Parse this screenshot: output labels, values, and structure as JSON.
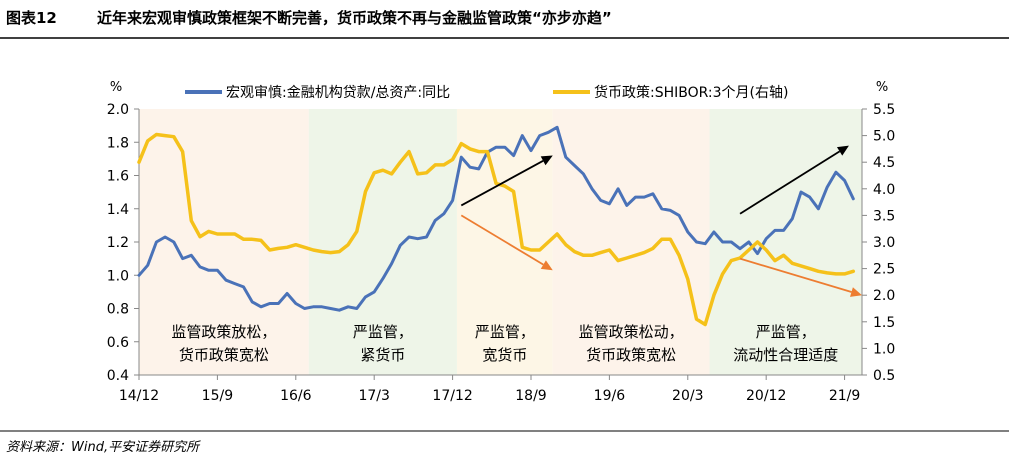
{
  "header": {
    "figure_no": "图表12",
    "title": "近年来宏观审慎政策框架不断完善，货币政策不再与金融监管政策“亦步亦趋”"
  },
  "source": "资料来源：Wind,平安证券研究所",
  "chart_data": {
    "type": "line",
    "left_axis": {
      "unit": "%",
      "range": [
        0.4,
        2.0
      ],
      "ticks": [
        "0.4",
        "0.6",
        "0.8",
        "1.0",
        "1.2",
        "1.4",
        "1.6",
        "1.8",
        "2.0"
      ],
      "tick_values": [
        0.4,
        0.6,
        0.8,
        1.0,
        1.2,
        1.4,
        1.6,
        1.8,
        2.0
      ]
    },
    "right_axis": {
      "unit": "%",
      "range": [
        0.5,
        5.5
      ],
      "ticks": [
        "0.5",
        "1.0",
        "1.5",
        "2.0",
        "2.5",
        "3.0",
        "3.5",
        "4.0",
        "4.5",
        "5.0",
        "5.5"
      ],
      "tick_values": [
        0.5,
        1.0,
        1.5,
        2.0,
        2.5,
        3.0,
        3.5,
        4.0,
        4.5,
        5.0,
        5.5
      ]
    },
    "x_ticks": [
      {
        "label": "14/12",
        "t": 0
      },
      {
        "label": "15/9",
        "t": 9
      },
      {
        "label": "16/6",
        "t": 18
      },
      {
        "label": "17/3",
        "t": 27
      },
      {
        "label": "17/12",
        "t": 36
      },
      {
        "label": "18/9",
        "t": 45
      },
      {
        "label": "19/6",
        "t": 54
      },
      {
        "label": "20/3",
        "t": 63
      },
      {
        "label": "20/12",
        "t": 72
      },
      {
        "label": "21/9",
        "t": 81
      }
    ],
    "t_range": [
      0,
      83
    ],
    "legend": {
      "placement": "top"
    },
    "grid": false,
    "series": [
      {
        "name": "宏观审慎:金融机构贷款/总资产:同比",
        "axis": "left",
        "color": "#4a72b8",
        "values": [
          1.0,
          1.06,
          1.2,
          1.23,
          1.2,
          1.1,
          1.12,
          1.05,
          1.03,
          1.03,
          0.97,
          0.95,
          0.93,
          0.84,
          0.81,
          0.83,
          0.83,
          0.89,
          0.83,
          0.8,
          0.81,
          0.81,
          0.8,
          0.79,
          0.81,
          0.8,
          0.87,
          0.9,
          0.98,
          1.07,
          1.18,
          1.23,
          1.22,
          1.23,
          1.33,
          1.37,
          1.45,
          1.71,
          1.65,
          1.64,
          1.74,
          1.77,
          1.77,
          1.72,
          1.84,
          1.75,
          1.84,
          1.86,
          1.89,
          1.71,
          1.66,
          1.61,
          1.52,
          1.45,
          1.43,
          1.52,
          1.42,
          1.47,
          1.47,
          1.49,
          1.4,
          1.39,
          1.36,
          1.26,
          1.2,
          1.19,
          1.26,
          1.2,
          1.2,
          1.16,
          1.2,
          1.13,
          1.22,
          1.27,
          1.27,
          1.34,
          1.5,
          1.47,
          1.4,
          1.53,
          1.62,
          1.57,
          1.46
        ]
      },
      {
        "name": "货币政策:SHIBOR:3个月(右轴)",
        "axis": "right",
        "color": "#f5c11a",
        "values": [
          4.5,
          4.9,
          5.02,
          5.0,
          4.98,
          4.7,
          3.4,
          3.1,
          3.2,
          3.15,
          3.15,
          3.15,
          3.05,
          3.05,
          3.03,
          2.85,
          2.88,
          2.9,
          2.95,
          2.9,
          2.85,
          2.82,
          2.8,
          2.82,
          2.95,
          3.2,
          3.95,
          4.3,
          4.35,
          4.28,
          4.5,
          4.7,
          4.28,
          4.3,
          4.45,
          4.45,
          4.55,
          4.85,
          4.75,
          4.7,
          4.7,
          4.1,
          4.05,
          3.95,
          2.9,
          2.85,
          2.85,
          3.0,
          3.15,
          2.95,
          2.82,
          2.75,
          2.75,
          2.8,
          2.85,
          2.65,
          2.7,
          2.75,
          2.8,
          2.88,
          3.05,
          3.05,
          2.75,
          2.3,
          1.55,
          1.45,
          2.0,
          2.4,
          2.65,
          2.7,
          2.85,
          3.0,
          2.85,
          2.65,
          2.75,
          2.6,
          2.55,
          2.5,
          2.45,
          2.42,
          2.4,
          2.4,
          2.45
        ]
      }
    ],
    "regions": [
      {
        "from": 0,
        "to": 19.5,
        "color": "#fdf3ea",
        "label_lines": [
          "监管政策放松，",
          "货币政策宽松"
        ]
      },
      {
        "from": 19.5,
        "to": 36.5,
        "color": "#eef5e8",
        "label_lines": [
          "严监管，",
          "紧货币"
        ]
      },
      {
        "from": 36.5,
        "to": 47.5,
        "color": "#fdf6e6",
        "label_lines": [
          "严监管，",
          "宽货币"
        ]
      },
      {
        "from": 47.5,
        "to": 65.5,
        "color": "#fdf3ea",
        "label_lines": [
          "监管政策松动，",
          "货币政策宽松"
        ]
      },
      {
        "from": 65.5,
        "to": 83,
        "color": "#eef5e8",
        "label_lines": [
          "严监管，",
          "流动性合理适度"
        ]
      }
    ],
    "annotations": [
      {
        "type": "arrow",
        "color": "#000000",
        "from": {
          "t": 37,
          "axis": "left",
          "v": 1.42
        },
        "to": {
          "t": 47.5,
          "axis": "left",
          "v": 1.72
        }
      },
      {
        "type": "arrow",
        "color": "#ed7d31",
        "from": {
          "t": 37,
          "axis": "left",
          "v": 1.36
        },
        "to": {
          "t": 47.5,
          "axis": "left",
          "v": 1.03
        }
      },
      {
        "type": "arrow",
        "color": "#000000",
        "from": {
          "t": 69,
          "axis": "left",
          "v": 1.37
        },
        "to": {
          "t": 81.5,
          "axis": "left",
          "v": 1.78
        }
      },
      {
        "type": "arrow",
        "color": "#ed7d31",
        "from": {
          "t": 69,
          "axis": "left",
          "v": 1.1
        },
        "to": {
          "t": 83,
          "axis": "left",
          "v": 0.88
        }
      }
    ]
  }
}
